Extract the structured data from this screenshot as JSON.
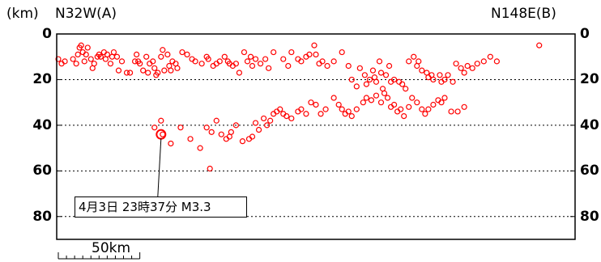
{
  "header": {
    "unit_label": "(km)",
    "left_direction": "N32W(A)",
    "right_direction": "N148E(B)"
  },
  "scale_bar": {
    "label": "50km",
    "length_km": 50
  },
  "annotation": {
    "text": "4月3日 23時37分 M3.3",
    "distance_km": 64,
    "depth_km": 44
  },
  "colors": {
    "event": "#ff0000",
    "frame": "#000000",
    "grid": "#000000",
    "background": "#ffffff"
  },
  "chart_data": {
    "type": "scatter",
    "title": "",
    "xlabel": "",
    "ylabel": "(km)",
    "x_direction_labels": [
      "N32W(A)",
      "N148E(B)"
    ],
    "xlim": [
      0,
      318
    ],
    "ylim": [
      90,
      0
    ],
    "yticks": [
      0,
      20,
      40,
      60,
      80
    ],
    "grid": "horizontal dotted at 20, 40, 60, 80",
    "legend": "none",
    "series": [
      {
        "points": [
          [
            1,
            11
          ],
          [
            3,
            13
          ],
          [
            5,
            12
          ],
          [
            10,
            11
          ],
          [
            12,
            13
          ],
          [
            13,
            9
          ],
          [
            14,
            6
          ],
          [
            15,
            5
          ],
          [
            16,
            8
          ],
          [
            17,
            12
          ],
          [
            18,
            9
          ],
          [
            19,
            6
          ],
          [
            21,
            11
          ],
          [
            22,
            15
          ],
          [
            23,
            13
          ],
          [
            25,
            10
          ],
          [
            26,
            9
          ],
          [
            27,
            10
          ],
          [
            29,
            8
          ],
          [
            30,
            11
          ],
          [
            31,
            9
          ],
          [
            33,
            13
          ],
          [
            34,
            10
          ],
          [
            35,
            8
          ],
          [
            37,
            10
          ],
          [
            38,
            16
          ],
          [
            40,
            12
          ],
          [
            43,
            17
          ],
          [
            45,
            17
          ],
          [
            48,
            12
          ],
          [
            49,
            9
          ],
          [
            50,
            12
          ],
          [
            51,
            13
          ],
          [
            53,
            16
          ],
          [
            55,
            10
          ],
          [
            56,
            17
          ],
          [
            57,
            13
          ],
          [
            59,
            12
          ],
          [
            60,
            15
          ],
          [
            61,
            18
          ],
          [
            62,
            17
          ],
          [
            64,
            10
          ],
          [
            65,
            7
          ],
          [
            66,
            16
          ],
          [
            68,
            9
          ],
          [
            69,
            14
          ],
          [
            70,
            16
          ],
          [
            71,
            12
          ],
          [
            73,
            13
          ],
          [
            74,
            15
          ],
          [
            77,
            8
          ],
          [
            80,
            9
          ],
          [
            83,
            11
          ],
          [
            85,
            12
          ],
          [
            89,
            13
          ],
          [
            92,
            10
          ],
          [
            93,
            11
          ],
          [
            96,
            14
          ],
          [
            98,
            13
          ],
          [
            100,
            12
          ],
          [
            103,
            10
          ],
          [
            105,
            12
          ],
          [
            106,
            13
          ],
          [
            108,
            14
          ],
          [
            110,
            13
          ],
          [
            112,
            17
          ],
          [
            115,
            8
          ],
          [
            117,
            12
          ],
          [
            119,
            10
          ],
          [
            120,
            14
          ],
          [
            122,
            11
          ],
          [
            125,
            13
          ],
          [
            128,
            11
          ],
          [
            130,
            15
          ],
          [
            133,
            8
          ],
          [
            139,
            11
          ],
          [
            142,
            14
          ],
          [
            144,
            8
          ],
          [
            148,
            11
          ],
          [
            150,
            12
          ],
          [
            153,
            10
          ],
          [
            155,
            9
          ],
          [
            158,
            5
          ],
          [
            159,
            9
          ],
          [
            161,
            13
          ],
          [
            163,
            12
          ],
          [
            166,
            14
          ],
          [
            170,
            12
          ],
          [
            175,
            8
          ],
          [
            179,
            14
          ],
          [
            181,
            20
          ],
          [
            184,
            23
          ],
          [
            186,
            15
          ],
          [
            189,
            18
          ],
          [
            190,
            22
          ],
          [
            192,
            20
          ],
          [
            194,
            16
          ],
          [
            195,
            19
          ],
          [
            196,
            21
          ],
          [
            198,
            12
          ],
          [
            199,
            17
          ],
          [
            200,
            24
          ],
          [
            202,
            18
          ],
          [
            204,
            14
          ],
          [
            205,
            21
          ],
          [
            207,
            20
          ],
          [
            210,
            21
          ],
          [
            212,
            22
          ],
          [
            214,
            24
          ],
          [
            216,
            12
          ],
          [
            219,
            10
          ],
          [
            221,
            14
          ],
          [
            222,
            12
          ],
          [
            224,
            16
          ],
          [
            227,
            17
          ],
          [
            228,
            19
          ],
          [
            230,
            18
          ],
          [
            231,
            20
          ],
          [
            235,
            18
          ],
          [
            236,
            21
          ],
          [
            238,
            20
          ],
          [
            240,
            18
          ],
          [
            243,
            21
          ],
          [
            245,
            13
          ],
          [
            248,
            15
          ],
          [
            250,
            17
          ],
          [
            252,
            14
          ],
          [
            255,
            15
          ],
          [
            258,
            13
          ],
          [
            262,
            12
          ],
          [
            266,
            10
          ],
          [
            270,
            12
          ],
          [
            296,
            5
          ],
          [
            64,
            38
          ],
          [
            60,
            41
          ],
          [
            65,
            44
          ],
          [
            70,
            48
          ],
          [
            76,
            41
          ],
          [
            82,
            46
          ],
          [
            88,
            50
          ],
          [
            94,
            59
          ],
          [
            92,
            41
          ],
          [
            95,
            43
          ],
          [
            98,
            38
          ],
          [
            101,
            44
          ],
          [
            104,
            46
          ],
          [
            106,
            45
          ],
          [
            107,
            43
          ],
          [
            110,
            40
          ],
          [
            114,
            47
          ],
          [
            118,
            46
          ],
          [
            120,
            45
          ],
          [
            122,
            39
          ],
          [
            124,
            42
          ],
          [
            127,
            37
          ],
          [
            129,
            40
          ],
          [
            131,
            38
          ],
          [
            133,
            35
          ],
          [
            135,
            34
          ],
          [
            137,
            33
          ],
          [
            139,
            35
          ],
          [
            141,
            36
          ],
          [
            144,
            37
          ],
          [
            148,
            34
          ],
          [
            150,
            33
          ],
          [
            153,
            35
          ],
          [
            156,
            30
          ],
          [
            159,
            31
          ],
          [
            162,
            35
          ],
          [
            165,
            33
          ],
          [
            170,
            28
          ],
          [
            173,
            31
          ],
          [
            175,
            33
          ],
          [
            177,
            35
          ],
          [
            179,
            34
          ],
          [
            181,
            36
          ],
          [
            184,
            33
          ],
          [
            188,
            30
          ],
          [
            190,
            28
          ],
          [
            193,
            29
          ],
          [
            196,
            27
          ],
          [
            199,
            30
          ],
          [
            201,
            26
          ],
          [
            203,
            28
          ],
          [
            205,
            32
          ],
          [
            207,
            31
          ],
          [
            209,
            34
          ],
          [
            211,
            33
          ],
          [
            213,
            36
          ],
          [
            216,
            32
          ],
          [
            218,
            28
          ],
          [
            221,
            30
          ],
          [
            224,
            33
          ],
          [
            226,
            35
          ],
          [
            228,
            33
          ],
          [
            231,
            31
          ],
          [
            234,
            29
          ],
          [
            236,
            30
          ],
          [
            238,
            28
          ],
          [
            242,
            34
          ],
          [
            246,
            34
          ],
          [
            250,
            32
          ]
        ]
      },
      {
        "name": "",
        "points": [
          [
            64,
            44
          ]
        ]
      }
    ]
  }
}
